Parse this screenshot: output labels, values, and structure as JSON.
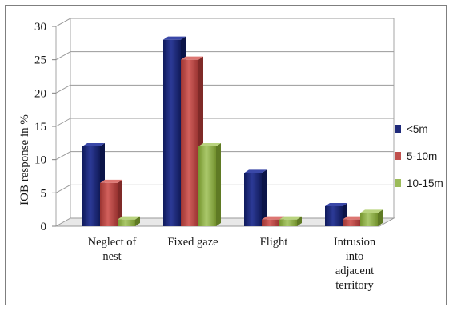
{
  "chart_data": {
    "type": "bar",
    "style": "3d-clustered-column",
    "title": "",
    "xlabel": "",
    "ylabel": "IOB response in %",
    "ylim": [
      0,
      30
    ],
    "yticks": [
      0,
      5,
      10,
      15,
      20,
      25,
      30
    ],
    "grid": true,
    "legend_position": "right",
    "categories": [
      [
        "Neglect of",
        "nest"
      ],
      [
        "Fixed gaze"
      ],
      [
        "Flight"
      ],
      [
        "Intrusion",
        "into",
        "adjacent",
        "territory"
      ]
    ],
    "series": [
      {
        "name": "<5m",
        "color": "#1f2a7a",
        "values": [
          12,
          28,
          8,
          3
        ]
      },
      {
        "name": "5-10m",
        "color": "#c0504d",
        "values": [
          6.5,
          25,
          1,
          1
        ]
      },
      {
        "name": "10-15m",
        "color": "#9bbb59",
        "values": [
          1,
          12,
          1,
          2
        ]
      }
    ]
  }
}
